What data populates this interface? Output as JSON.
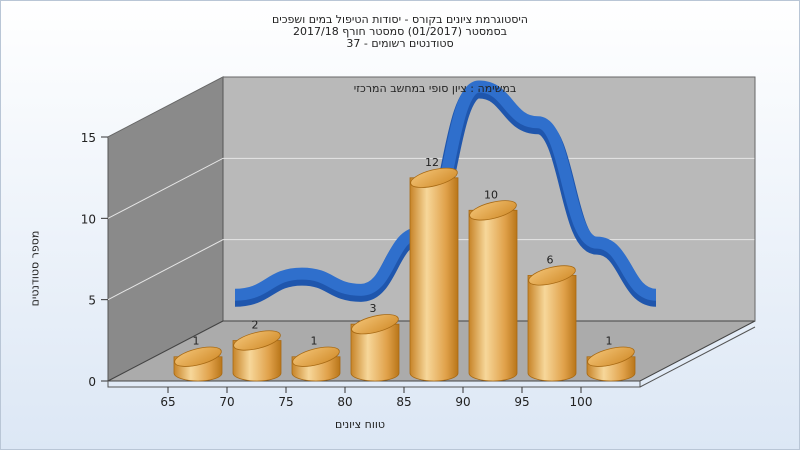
{
  "title_lines": [
    "היסטוגרמת ציונים בקורס - יסודות הטיפול במים ושפכים",
    "בסמסטר  (01/2017)  סמסטר חורף 2017/18",
    "סטודנטים רשומים - 37"
  ],
  "chart_data": {
    "type": "bar",
    "title": "היסטוגרמת ציונים בקורס - יסודות הטיפול במים ושפכים",
    "subtitle": "במשימה : ציון סופי במחשב המרכזי",
    "xlabel": "טווח ציונים",
    "ylabel": "מספר סטודנטים",
    "x_ticks": [
      "65",
      "70",
      "75",
      "80",
      "85",
      "90",
      "95",
      "100"
    ],
    "y_ticks": [
      0,
      5,
      10,
      15
    ],
    "ylim": [
      0,
      15
    ],
    "grid": true,
    "series": [
      {
        "type": "bar",
        "values": [
          1,
          2,
          1,
          3,
          12,
          10,
          6,
          1
        ]
      },
      {
        "type": "line",
        "values": [
          1,
          2.3,
          1.3,
          4.8,
          13.8,
          11.6,
          4.2,
          1
        ]
      }
    ],
    "colors": {
      "bars": "#e3a24a",
      "curve": "#2f6fcc",
      "back_wall": "#b9b9b9",
      "side_wall": "#8a8a8a",
      "floor": "#ababab"
    }
  }
}
